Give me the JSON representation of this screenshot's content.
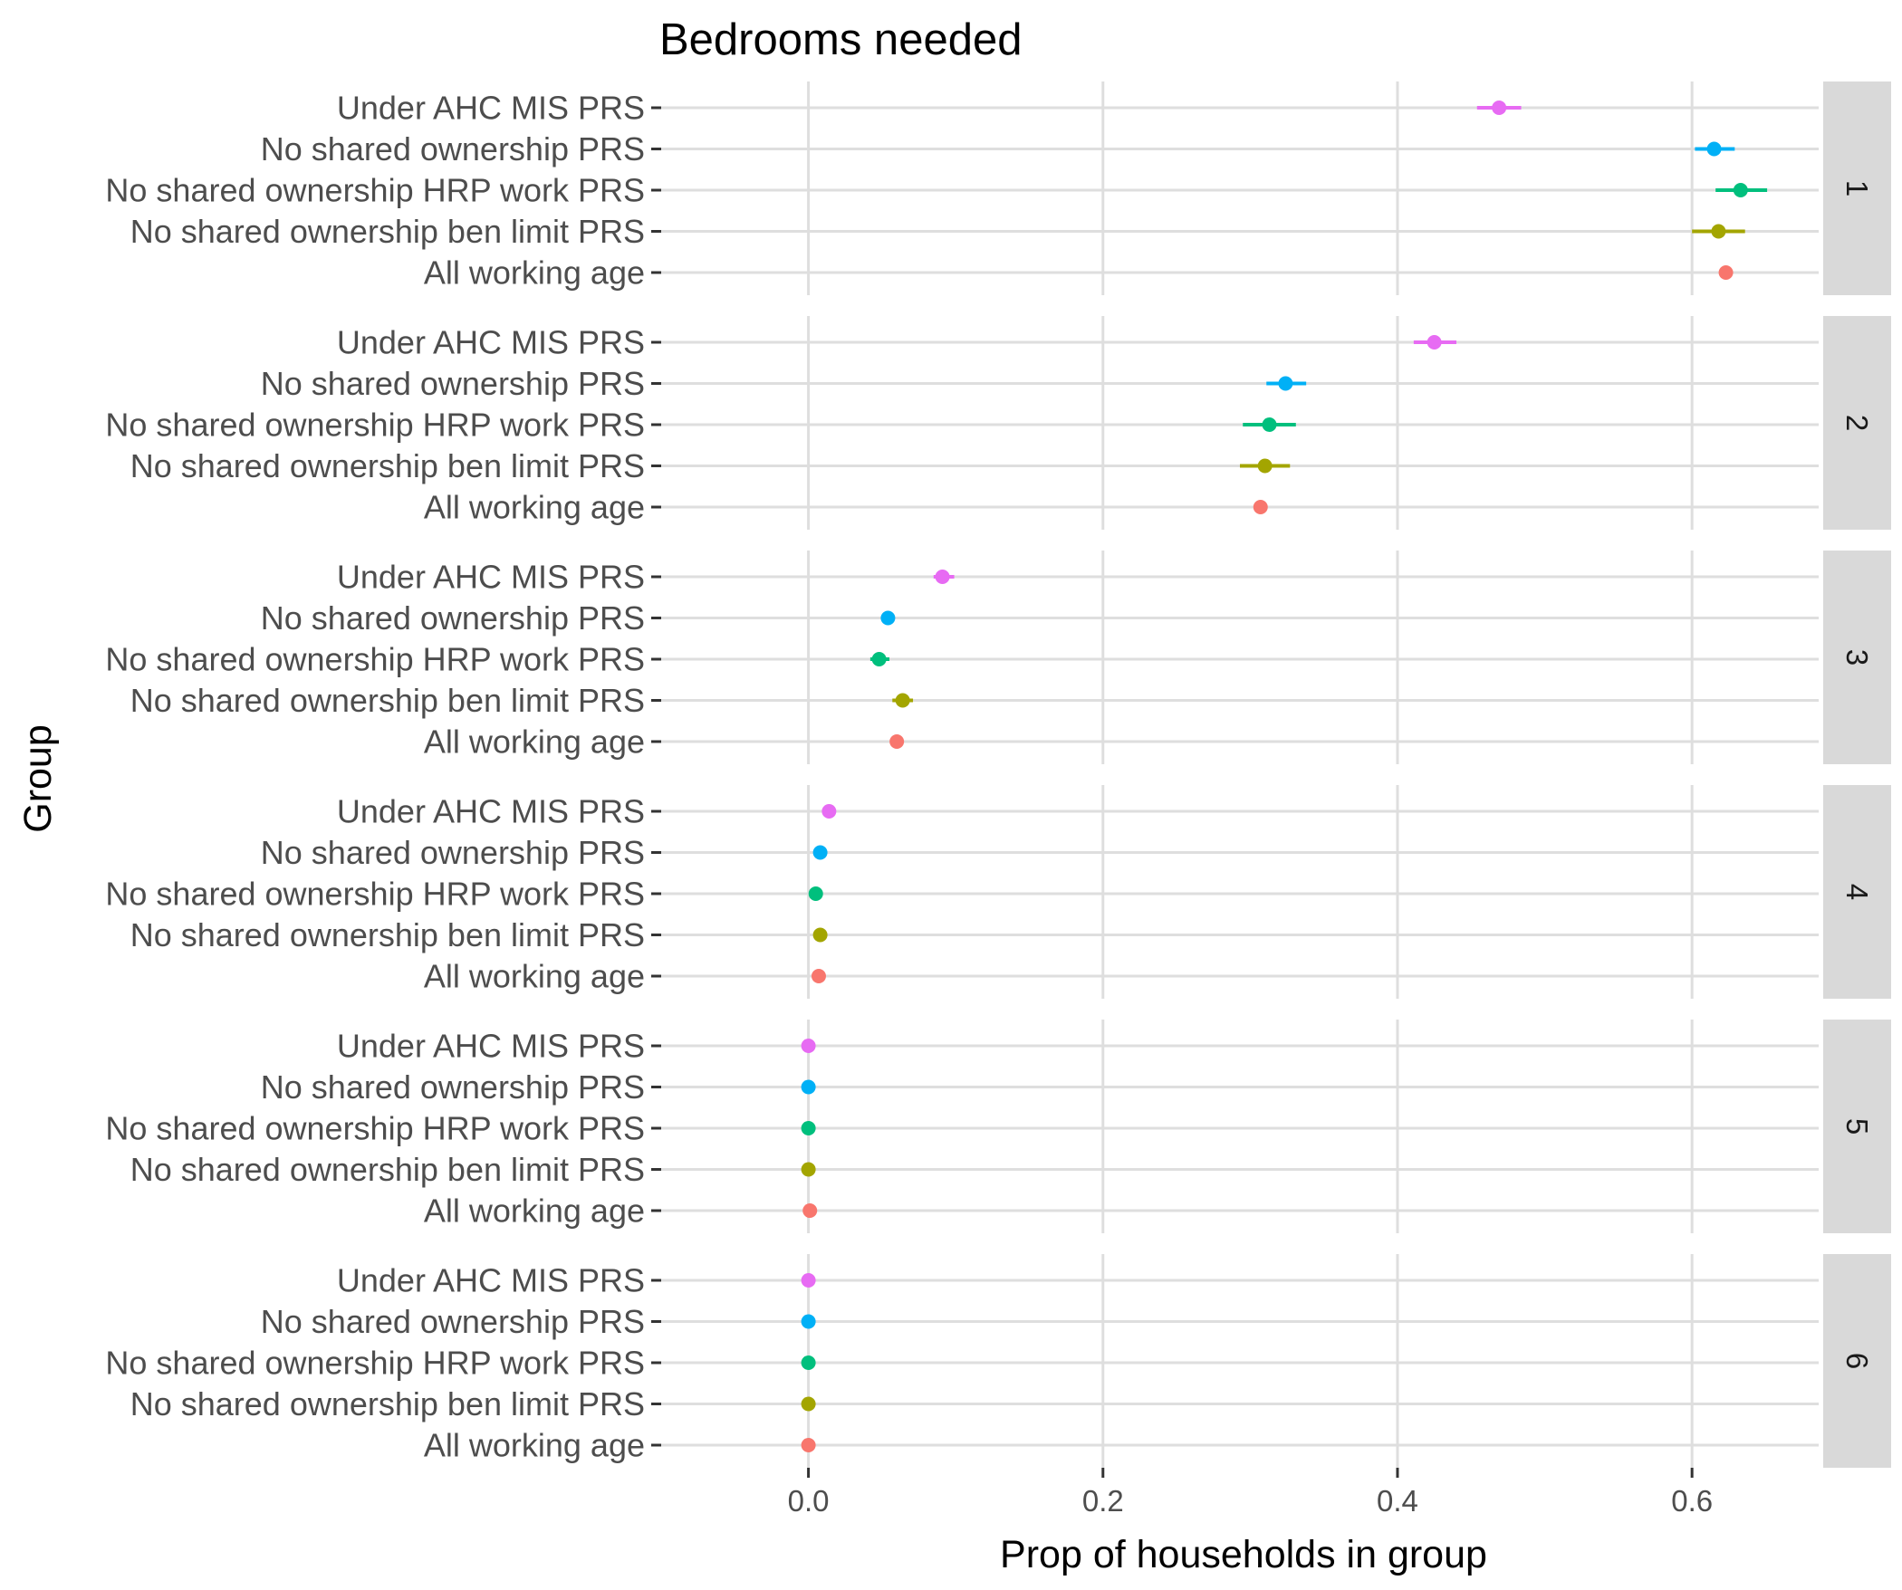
{
  "chart_data": {
    "type": "scatter",
    "title": "Bedrooms needed",
    "xlabel": "Prop of households in group",
    "ylabel": "Group",
    "xlim": [
      -0.1,
      0.686
    ],
    "x_ticks": [
      "0.0",
      "0.2",
      "0.4",
      "0.6"
    ],
    "x_tick_values": [
      0.0,
      0.2,
      0.4,
      0.6
    ],
    "facet_variable": "bedrooms needed",
    "grid": true,
    "legend": "none",
    "categories": [
      "Under AHC MIS PRS",
      "No shared ownership PRS",
      "No shared ownership HRP work PRS",
      "No shared ownership ben limit PRS",
      "All working age"
    ],
    "colors": [
      "#E76BF3",
      "#00B0F6",
      "#00BF7D",
      "#A3A500",
      "#F8766D"
    ],
    "panels": [
      {
        "label": "1",
        "values": [
          0.469,
          0.615,
          0.633,
          0.618,
          0.623
        ],
        "ci_low": [
          0.454,
          0.602,
          0.616,
          0.6,
          0.623
        ],
        "ci_high": [
          0.484,
          0.629,
          0.651,
          0.636,
          0.623
        ]
      },
      {
        "label": "2",
        "values": [
          0.425,
          0.324,
          0.313,
          0.31,
          0.307
        ],
        "ci_low": [
          0.411,
          0.311,
          0.295,
          0.293,
          0.307
        ],
        "ci_high": [
          0.44,
          0.338,
          0.331,
          0.327,
          0.307
        ]
      },
      {
        "label": "3",
        "values": [
          0.091,
          0.054,
          0.048,
          0.064,
          0.06
        ],
        "ci_low": [
          0.085,
          0.054,
          0.042,
          0.057,
          0.06
        ],
        "ci_high": [
          0.099,
          0.054,
          0.055,
          0.071,
          0.06
        ]
      },
      {
        "label": "4",
        "values": [
          0.014,
          0.008,
          0.005,
          0.008,
          0.007
        ],
        "ci_low": [
          0.014,
          0.008,
          0.005,
          0.008,
          0.007
        ],
        "ci_high": [
          0.014,
          0.008,
          0.005,
          0.008,
          0.007
        ]
      },
      {
        "label": "5",
        "values": [
          0.0,
          0.0,
          0.0,
          0.0,
          0.001
        ],
        "ci_low": [
          0.0,
          0.0,
          0.0,
          0.0,
          0.001
        ],
        "ci_high": [
          0.0,
          0.0,
          0.0,
          0.0,
          0.001
        ]
      },
      {
        "label": "6",
        "values": [
          0.0,
          0.0,
          0.0,
          0.0,
          0.0
        ],
        "ci_low": [
          0.0,
          0.0,
          0.0,
          0.0,
          0.0
        ],
        "ci_high": [
          0.0,
          0.0,
          0.0,
          0.0,
          0.0
        ]
      }
    ]
  }
}
